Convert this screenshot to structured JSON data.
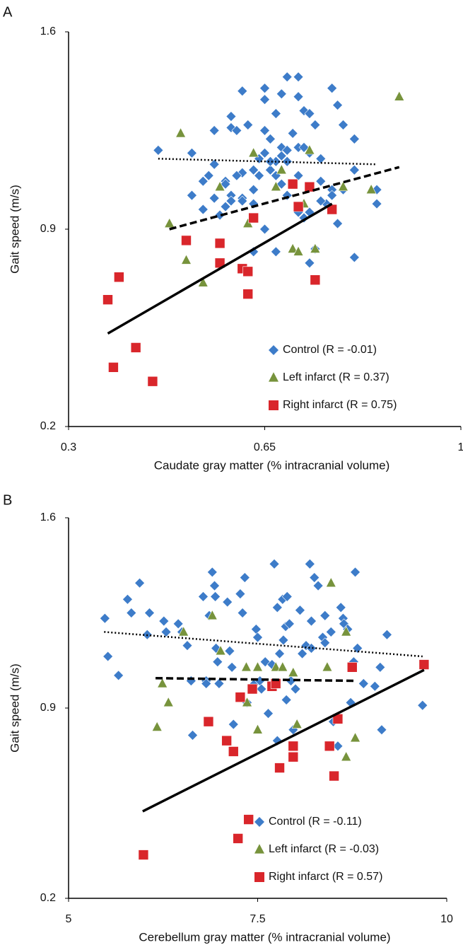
{
  "chart_data": [
    {
      "type": "scatter",
      "panel": "A",
      "xlabel": "Caudate gray matter (% intracranial volume)",
      "ylabel": "Gait speed (m/s)",
      "xlim": [
        0.3,
        1
      ],
      "ylim": [
        0.2,
        1.6
      ],
      "xticks": [
        0.3,
        0.65,
        1
      ],
      "yticks": [
        0.2,
        0.9,
        1.6
      ],
      "grid": false,
      "legend": "lower right",
      "series": [
        {
          "name": "Control (R = -0.01)",
          "color": "#3d7cc9",
          "marker": "diamond",
          "x": [
            0.46,
            0.52,
            0.56,
            0.59,
            0.59,
            0.6,
            0.61,
            0.65,
            0.65,
            0.67,
            0.68,
            0.69,
            0.71,
            0.71,
            0.72,
            0.73,
            0.74,
            0.77,
            0.78,
            0.79,
            0.81,
            0.7,
            0.68,
            0.66,
            0.65,
            0.64,
            0.63,
            0.61,
            0.6,
            0.58,
            0.56,
            0.55,
            0.54,
            0.52,
            0.58,
            0.59,
            0.61,
            0.63,
            0.64,
            0.66,
            0.67,
            0.68,
            0.69,
            0.71,
            0.72,
            0.73,
            0.75,
            0.77,
            0.76,
            0.75,
            0.73,
            0.72,
            0.71,
            0.69,
            0.68,
            0.67,
            0.66,
            0.65,
            0.63,
            0.61,
            0.59,
            0.58,
            0.57,
            0.56,
            0.54,
            0.52,
            0.63,
            0.67,
            0.73,
            0.74,
            0.78,
            0.81,
            0.85,
            0.85,
            0.79,
            0.77,
            0.81,
            0.75,
            0.7,
            0.71,
            0.65,
            0.62,
            0.69
          ],
          "values": [
            1.18,
            1.17,
            1.25,
            1.3,
            1.26,
            1.25,
            1.39,
            1.4,
            1.36,
            1.31,
            1.38,
            1.44,
            1.44,
            1.37,
            1.32,
            1.31,
            1.27,
            1.4,
            1.34,
            1.27,
            1.22,
            1.24,
            1.19,
            1.22,
            1.17,
            1.15,
            1.11,
            1.1,
            1.09,
            1.07,
            1.13,
            1.09,
            1.07,
            1.02,
            1.06,
            1.02,
            1.01,
            1.04,
            1.09,
            1.11,
            1.14,
            1.16,
            1.18,
            1.19,
            1.19,
            1.17,
            1.15,
            1.04,
            0.99,
            1.0,
            0.96,
            0.94,
            0.96,
            1.02,
            1.06,
            1.09,
            1.14,
            0.9,
            0.99,
            1.0,
            1.0,
            0.98,
            0.95,
            1.01,
            0.97,
            1.02,
            0.82,
            0.82,
            0.78,
            0.83,
            0.92,
            0.8,
            0.99,
            1.04,
            1.04,
            1.02,
            1.11,
            1.07,
            1.06,
            1.09,
            1.25,
            1.27,
            1.14
          ],
          "trendline": {
            "style": "dotted",
            "x": [
              0.46,
              0.85
            ],
            "y": [
              1.15,
              1.13
            ]
          }
        },
        {
          "name": "Left infarct (R = 0.37)",
          "color": "#77933c",
          "marker": "triangle",
          "x": [
            0.89,
            0.5,
            0.63,
            0.73,
            0.68,
            0.67,
            0.57,
            0.72,
            0.79,
            0.84,
            0.48,
            0.62,
            0.7,
            0.71,
            0.74,
            0.51,
            0.54
          ],
          "values": [
            1.37,
            1.24,
            1.17,
            1.18,
            1.11,
            1.05,
            1.05,
            0.99,
            1.05,
            1.04,
            0.92,
            0.92,
            0.83,
            0.82,
            0.83,
            0.79,
            0.71
          ],
          "trendline": {
            "style": "dashed",
            "x": [
              0.48,
              0.89
            ],
            "y": [
              0.9,
              1.12
            ]
          }
        },
        {
          "name": "Right infarct (R = 0.75)",
          "color": "#d9262b",
          "marker": "square",
          "x": [
            0.37,
            0.39,
            0.38,
            0.42,
            0.45,
            0.51,
            0.57,
            0.57,
            0.61,
            0.62,
            0.62,
            0.63,
            0.7,
            0.73,
            0.71,
            0.77,
            0.74
          ],
          "values": [
            0.65,
            0.73,
            0.41,
            0.48,
            0.36,
            0.86,
            0.85,
            0.78,
            0.76,
            0.75,
            0.67,
            0.94,
            1.06,
            1.05,
            0.98,
            0.97,
            0.72
          ],
          "trendline": {
            "style": "solid",
            "x": [
              0.37,
              0.77
            ],
            "y": [
              0.53,
              0.99
            ]
          }
        }
      ]
    },
    {
      "type": "scatter",
      "panel": "B",
      "xlabel": "Cerebellum gray matter (% intracranial volume)",
      "ylabel": "Gait speed (m/s)",
      "xlim": [
        5,
        10
      ],
      "ylim": [
        0.2,
        1.6
      ],
      "xticks": [
        5,
        7.5,
        10
      ],
      "yticks": [
        0.2,
        0.9,
        1.6
      ],
      "grid": false,
      "legend": "lower right",
      "series": [
        {
          "name": "Control (R = -0.11)",
          "color": "#3d7cc9",
          "marker": "diamond",
          "x": [
            5.48,
            5.52,
            5.66,
            5.78,
            5.83,
            5.94,
            6.04,
            6.07,
            6.26,
            6.29,
            6.45,
            6.5,
            6.57,
            6.62,
            6.64,
            6.78,
            6.82,
            6.86,
            6.9,
            6.93,
            6.94,
            6.95,
            6.97,
            6.99,
            6.82,
            7.1,
            7.13,
            7.16,
            7.18,
            7.27,
            7.3,
            7.33,
            7.36,
            7.46,
            7.48,
            7.5,
            7.53,
            7.55,
            7.6,
            7.64,
            7.72,
            7.76,
            7.79,
            7.83,
            7.84,
            7.87,
            7.89,
            7.92,
            7.94,
            7.97,
            8.06,
            8.09,
            8.14,
            8.19,
            8.21,
            8.25,
            8.3,
            8.36,
            8.39,
            8.47,
            8.5,
            8.56,
            8.6,
            8.63,
            8.64,
            8.69,
            8.73,
            8.77,
            8.79,
            8.82,
            8.9,
            9.05,
            9.12,
            9.14,
            9.21,
            9.68,
            7.69,
            7.76,
            7.88,
            8.0,
            8.21,
            8.39
          ],
          "values": [
            1.23,
            1.09,
            1.02,
            1.3,
            1.25,
            1.36,
            1.17,
            1.25,
            1.22,
            1.18,
            1.21,
            1.18,
            1.13,
            1.0,
            0.8,
            1.31,
            1.0,
            1.24,
            1.4,
            1.35,
            1.31,
            1.12,
            1.07,
            0.99,
            0.99,
            1.29,
            1.11,
            1.05,
            0.84,
            1.32,
            1.25,
            1.38,
            0.92,
            0.99,
            1.19,
            1.16,
            1.0,
            0.97,
            1.07,
            0.88,
            1.43,
            1.27,
            1.1,
            1.3,
            1.15,
            1.2,
            1.31,
            1.21,
            1.0,
            0.82,
            1.26,
            1.1,
            1.13,
            1.43,
            1.22,
            1.38,
            1.35,
            1.16,
            1.14,
            1.18,
            0.85,
            0.76,
            1.27,
            1.23,
            1.21,
            1.19,
            0.92,
            1.07,
            1.4,
            1.12,
            0.99,
            0.98,
            1.05,
            0.82,
            1.17,
            0.91,
            1.06,
            0.78,
            0.93,
            0.97,
            1.12,
            1.24
          ],
          "trendline": {
            "style": "dotted",
            "x": [
              5.47,
              9.68
            ],
            "y": [
              1.18,
              1.09
            ]
          }
        },
        {
          "name": "Left infarct (R = -0.03)",
          "color": "#77933c",
          "marker": "triangle",
          "x": [
            6.9,
            6.52,
            7.01,
            7.35,
            7.5,
            7.74,
            7.83,
            7.97,
            8.42,
            8.47,
            8.67,
            6.24,
            6.32,
            6.17,
            7.36,
            7.5,
            8.02,
            8.67,
            8.79
          ],
          "values": [
            1.24,
            1.18,
            1.11,
            1.05,
            1.05,
            1.05,
            1.05,
            1.03,
            1.05,
            1.36,
            1.18,
            0.99,
            0.92,
            0.83,
            0.92,
            0.82,
            0.84,
            0.72,
            0.79
          ],
          "trendline": {
            "style": "dashed",
            "x": [
              6.15,
              8.81
            ],
            "y": [
              1.01,
              1.0
            ]
          }
        },
        {
          "name": "Right infarct (R = 0.57)",
          "color": "#d9262b",
          "marker": "square",
          "x": [
            5.99,
            7.24,
            7.38,
            6.85,
            7.09,
            7.18,
            7.27,
            7.43,
            7.69,
            7.74,
            7.79,
            7.97,
            7.97,
            8.45,
            8.56,
            8.51,
            8.75,
            9.7
          ],
          "values": [
            0.36,
            0.42,
            0.49,
            0.85,
            0.78,
            0.74,
            0.94,
            0.97,
            0.98,
            0.99,
            0.68,
            0.72,
            0.76,
            0.76,
            0.86,
            0.65,
            1.05,
            1.06
          ],
          "trendline": {
            "style": "solid",
            "x": [
              5.98,
              9.7
            ],
            "y": [
              0.52,
              1.04
            ]
          }
        }
      ]
    }
  ]
}
